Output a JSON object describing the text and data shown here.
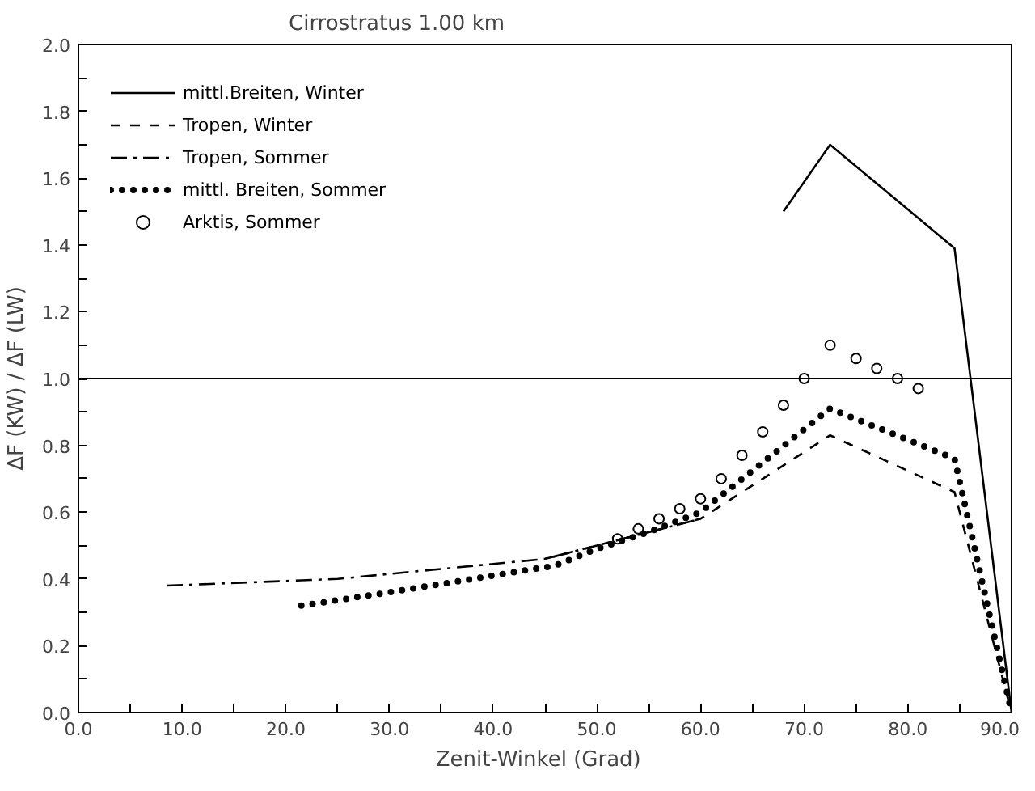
{
  "chart_data": {
    "type": "line",
    "title": "Cirrostratus    1.00 km",
    "xlabel": "Zenit-Winkel   (Grad)",
    "ylabel": "ΔF (KW) / ΔF (LW)",
    "xlim": [
      0,
      90
    ],
    "ylim": [
      0,
      2
    ],
    "xticks": [
      {
        "value": 0,
        "label": "0.0"
      },
      {
        "value": 5,
        "label": null
      },
      {
        "value": 10,
        "label": "10.0"
      },
      {
        "value": 15,
        "label": null
      },
      {
        "value": 20,
        "label": "20.0"
      },
      {
        "value": 25,
        "label": null
      },
      {
        "value": 30,
        "label": "30.0"
      },
      {
        "value": 35,
        "label": null
      },
      {
        "value": 40,
        "label": "40.0"
      },
      {
        "value": 45,
        "label": null
      },
      {
        "value": 50,
        "label": "50.0"
      },
      {
        "value": 55,
        "label": null
      },
      {
        "value": 60,
        "label": "60.0"
      },
      {
        "value": 65,
        "label": null
      },
      {
        "value": 70,
        "label": "70.0"
      },
      {
        "value": 75,
        "label": null
      },
      {
        "value": 80,
        "label": "80.0"
      },
      {
        "value": 85,
        "label": null
      },
      {
        "value": 90,
        "label": "90.0"
      }
    ],
    "yticks": [
      {
        "value": 0,
        "label": "0.0"
      },
      {
        "value": 0.1,
        "label": null
      },
      {
        "value": 0.2,
        "label": "0.2"
      },
      {
        "value": 0.3,
        "label": null
      },
      {
        "value": 0.4,
        "label": "0.4"
      },
      {
        "value": 0.5,
        "label": null
      },
      {
        "value": 0.6,
        "label": "0.6"
      },
      {
        "value": 0.7,
        "label": null
      },
      {
        "value": 0.8,
        "label": "0.8"
      },
      {
        "value": 0.9,
        "label": null
      },
      {
        "value": 1.0,
        "label": "1.0"
      },
      {
        "value": 1.1,
        "label": null
      },
      {
        "value": 1.2,
        "label": "1.2"
      },
      {
        "value": 1.3,
        "label": null
      },
      {
        "value": 1.4,
        "label": "1.4"
      },
      {
        "value": 1.5,
        "label": null
      },
      {
        "value": 1.6,
        "label": "1.6"
      },
      {
        "value": 1.7,
        "label": null
      },
      {
        "value": 1.8,
        "label": "1.8"
      },
      {
        "value": 1.9,
        "label": null
      },
      {
        "value": 2.0,
        "label": "2.0"
      }
    ],
    "grid": false,
    "legend": "top left",
    "ref_lines": [
      {
        "axis": "y",
        "value": 1.0,
        "color": "#000000",
        "line_style": "solid"
      }
    ],
    "series": [
      {
        "name": "mittl.Breiten, Winter",
        "color": "#000000",
        "line_style": "solid",
        "x": [
          68,
          72.5,
          84.5,
          90
        ],
        "values": [
          1.5,
          1.7,
          1.39,
          0.0
        ]
      },
      {
        "name": "Tropen, Winter",
        "color": "#000000",
        "line_style": "dashed",
        "x": [
          45,
          50,
          60,
          72.5,
          84.5,
          90
        ],
        "values": [
          0.46,
          0.5,
          0.58,
          0.83,
          0.66,
          0.0
        ]
      },
      {
        "name": "Tropen, Sommer",
        "color": "#000000",
        "line_style": "dashdot",
        "x": [
          8.5,
          25,
          45,
          50,
          60
        ],
        "values": [
          0.38,
          0.4,
          0.46,
          0.5,
          0.58
        ]
      },
      {
        "name": "mittl. Breiten, Sommer",
        "color": "#000000",
        "line_style": "dotted",
        "x": [
          21.5,
          30,
          40,
          46,
          50,
          55,
          60,
          72.5,
          84.5,
          90
        ],
        "values": [
          0.32,
          0.36,
          0.41,
          0.44,
          0.49,
          0.54,
          0.6,
          0.91,
          0.76,
          0.0
        ]
      },
      {
        "name": "Arktis, Sommer",
        "type": "scatter",
        "marker": "circle",
        "color": "#000000",
        "x": [
          52,
          54,
          56,
          58,
          60,
          62,
          64,
          66,
          68,
          70,
          72.5,
          75,
          77,
          79,
          81
        ],
        "values": [
          0.52,
          0.55,
          0.58,
          0.61,
          0.64,
          0.7,
          0.77,
          0.84,
          0.92,
          1.0,
          1.1,
          1.06,
          1.03,
          1.0,
          0.97
        ]
      }
    ]
  }
}
